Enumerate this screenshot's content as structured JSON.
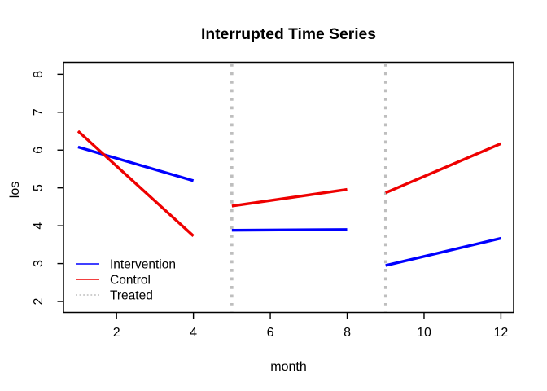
{
  "chart_data": {
    "type": "line",
    "title": "Interrupted Time Series",
    "xlabel": "month",
    "ylabel": "los",
    "xlim": [
      0.62,
      12.33
    ],
    "ylim": [
      1.71,
      8.32
    ],
    "x_ticks": [
      2,
      4,
      6,
      8,
      10,
      12
    ],
    "y_ticks": [
      2,
      3,
      4,
      5,
      6,
      7,
      8
    ],
    "grid": false,
    "background": "#ffffff",
    "box_color": "#000000",
    "series": [
      {
        "name": "Intervention",
        "color": "#0000ff",
        "style": "solid",
        "segments": [
          [
            [
              1,
              6.08
            ],
            [
              4,
              5.19
            ]
          ],
          [
            [
              5,
              3.88
            ],
            [
              8,
              3.9
            ]
          ],
          [
            [
              9,
              2.95
            ],
            [
              12,
              3.67
            ]
          ]
        ]
      },
      {
        "name": "Control",
        "color": "#ee0000",
        "style": "solid",
        "segments": [
          [
            [
              1,
              6.5
            ],
            [
              4,
              3.73
            ]
          ],
          [
            [
              5,
              4.52
            ],
            [
              8,
              4.96
            ]
          ],
          [
            [
              9,
              4.87
            ],
            [
              12,
              6.17
            ]
          ]
        ]
      }
    ],
    "treated_lines": {
      "name": "Treated",
      "color": "#bebebe",
      "style": "dotted",
      "x_positions": [
        5,
        9
      ]
    },
    "legend": {
      "position": "bottom-left",
      "entries": [
        {
          "label": "Intervention",
          "color": "#0000ff",
          "style": "solid"
        },
        {
          "label": "Control",
          "color": "#ee0000",
          "style": "solid"
        },
        {
          "label": "Treated",
          "color": "#bebebe",
          "style": "dotted"
        }
      ]
    }
  }
}
